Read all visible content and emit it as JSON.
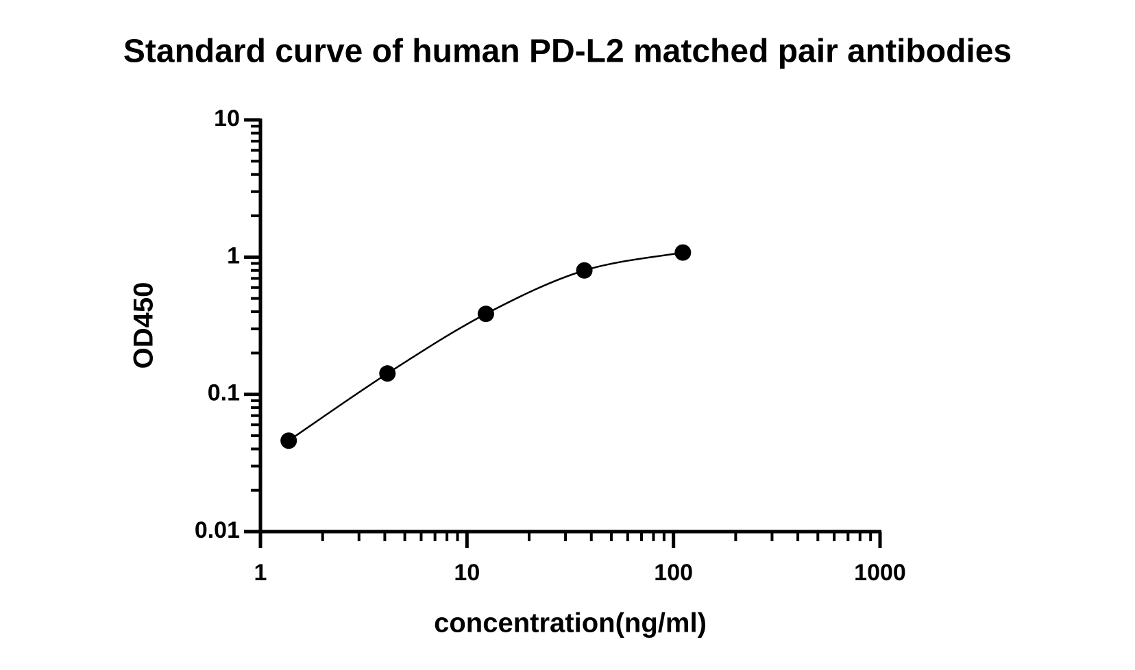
{
  "chart_data": {
    "type": "scatter",
    "title": "Standard curve of human PD-L2 matched pair antibodies",
    "x_label": "concentration(ng/ml)",
    "y_label": "OD450",
    "x_scale": "log",
    "y_scale": "log",
    "xlim": [
      1,
      1000
    ],
    "ylim": [
      0.01,
      10
    ],
    "xticks": [
      1,
      10,
      100,
      1000
    ],
    "yticks": [
      0.01,
      0.1,
      1,
      10
    ],
    "grid": false,
    "fit_curve": true,
    "series": [
      {
        "color": "#000000",
        "x": [
          1.37,
          4.12,
          12.35,
          37,
          111
        ],
        "values": [
          0.046,
          0.142,
          0.386,
          0.8,
          1.08
        ]
      }
    ]
  }
}
